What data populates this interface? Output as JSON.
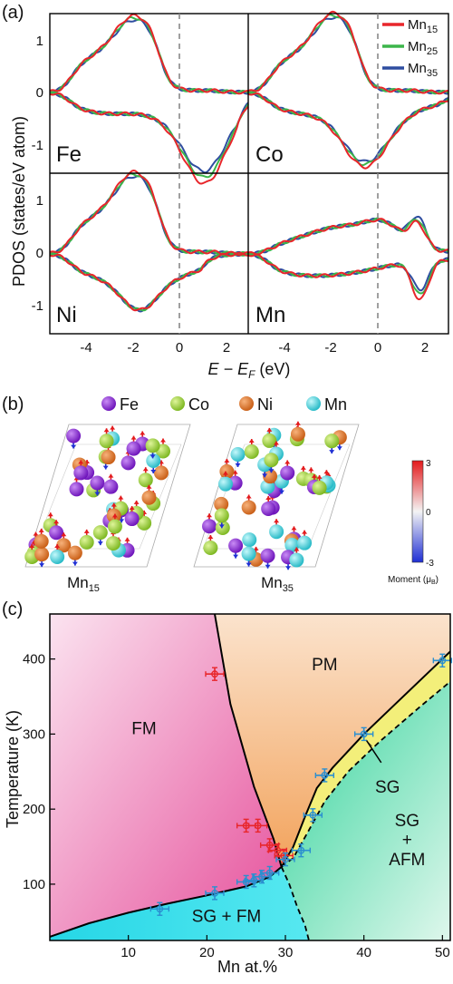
{
  "panel_a": {
    "label": "(a)",
    "ylabel": "PDOS (states/eV atom)",
    "xlabel_main": "E − E",
    "xlabel_sub": "F",
    "xlabel_unit": " (eV)",
    "subplots": [
      {
        "name": "Fe"
      },
      {
        "name": "Co"
      },
      {
        "name": "Ni"
      },
      {
        "name": "Mn"
      }
    ],
    "x_ticks_left": [
      "-4",
      "-2",
      "0",
      "2"
    ],
    "x_ticks_right": [
      "-4",
      "-2",
      "0",
      "2"
    ],
    "y_ticks": [
      "1",
      "0",
      "-1"
    ],
    "legend": [
      {
        "label": "Mn",
        "sub": "15",
        "color": "#e8262b"
      },
      {
        "label": "Mn",
        "sub": "25",
        "color": "#3cb54a"
      },
      {
        "label": "Mn",
        "sub": "35",
        "color": "#2e4da0"
      }
    ]
  },
  "panel_b": {
    "label": "(b)",
    "legend": [
      {
        "label": "Fe",
        "color": "#8a2be2"
      },
      {
        "label": "Co",
        "color": "#9acd32"
      },
      {
        "label": "Ni",
        "color": "#e2731f"
      },
      {
        "label": "Mn",
        "color": "#40d8e0"
      }
    ],
    "cell_left_label": "Mn",
    "cell_left_sub": "15",
    "cell_right_label": "Mn",
    "cell_right_sub": "35",
    "colorbar_ticks": [
      "3",
      "0",
      "-3"
    ],
    "colorbar_label": "Moment (μ",
    "colorbar_label_sub": "B",
    "colorbar_label_end": ")"
  },
  "panel_c": {
    "label": "(c)",
    "region_labels": {
      "fm": "FM",
      "pm": "PM",
      "sg": "SG",
      "sgfm": "SG + FM",
      "sgafm_1": "SG",
      "sgafm_2": "+",
      "sgafm_3": "AFM"
    },
    "y_ticks": [
      "400",
      "300",
      "200",
      "100"
    ],
    "x_ticks": [
      "10",
      "20",
      "30",
      "40",
      "50"
    ]
  },
  "chart_data": [
    {
      "type": "line",
      "title": "",
      "xlabel": "E − E_F (eV)",
      "ylabel": "PDOS (states/eV atom)",
      "xlim": [
        -5.5,
        3
      ],
      "ylim": [
        -1.4,
        1.4
      ],
      "subplots": [
        "Fe",
        "Co",
        "Ni",
        "Mn"
      ],
      "series": [
        "Mn15",
        "Mn25",
        "Mn35"
      ],
      "fermi_level": 0
    },
    {
      "type": "scatter",
      "title": "",
      "xlabel": "Mn at.%",
      "ylabel": "Temperature (K)",
      "xlim": [
        0,
        51
      ],
      "ylim": [
        25,
        460
      ],
      "series": [
        {
          "name": "",
          "color": "#e8262b",
          "points": [
            [
              21,
              380
            ],
            [
              25,
              178
            ],
            [
              26.5,
              178
            ],
            [
              28,
              152
            ],
            [
              29,
              145
            ],
            [
              29.8,
              138
            ]
          ]
        },
        {
          "name": "",
          "color": "#2b8fd0",
          "points": [
            [
              14,
              67
            ],
            [
              21,
              88
            ],
            [
              25,
              103
            ],
            [
              26,
              105
            ],
            [
              27,
              110
            ],
            [
              28,
              115
            ],
            [
              30,
              133
            ],
            [
              32,
              145
            ],
            [
              33.5,
              192
            ],
            [
              35,
              245
            ],
            [
              40,
              300
            ],
            [
              50,
              398
            ]
          ]
        }
      ]
    }
  ]
}
